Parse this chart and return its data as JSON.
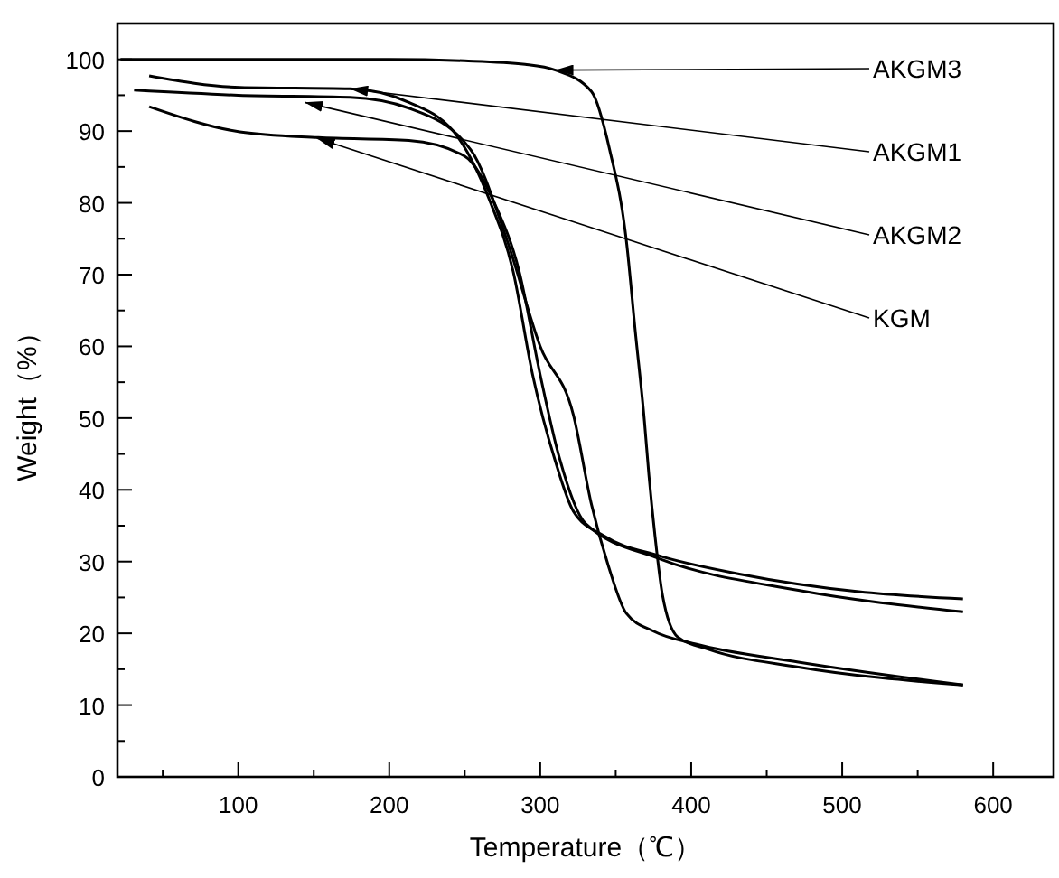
{
  "chart_data": {
    "type": "line",
    "xlabel": "Temperature（℃）",
    "ylabel": "Weight（%）",
    "xlim": [
      20,
      640
    ],
    "ylim": [
      0,
      105
    ],
    "xticks": [
      {
        "value": 50,
        "label": null
      },
      100,
      {
        "value": 150,
        "label": null
      },
      200,
      {
        "value": 250,
        "label": null
      },
      300,
      {
        "value": 350,
        "label": null
      },
      400,
      {
        "value": 450,
        "label": null
      },
      500,
      {
        "value": 550,
        "label": null
      },
      600
    ],
    "yticks": [
      0,
      {
        "value": 5,
        "label": null
      },
      10,
      {
        "value": 15,
        "label": null
      },
      20,
      {
        "value": 25,
        "label": null
      },
      30,
      {
        "value": 35,
        "label": null
      },
      40,
      {
        "value": 45,
        "label": null
      },
      50,
      {
        "value": 55,
        "label": null
      },
      60,
      {
        "value": 65,
        "label": null
      },
      70,
      {
        "value": 75,
        "label": null
      },
      80,
      {
        "value": 85,
        "label": null
      },
      90,
      {
        "value": 95,
        "label": null
      },
      100
    ],
    "grid": false,
    "marker": "none",
    "line_style": "solid",
    "series": [
      {
        "color": "#000000",
        "x": [
          22,
          100,
          200,
          250,
          290,
          310,
          334,
          346,
          357,
          363,
          369,
          372,
          376,
          381,
          391,
          411,
          471,
          580
        ],
        "values": [
          100,
          100,
          100,
          99.8,
          99.3,
          98.5,
          95.5,
          87.4,
          74.8,
          62,
          49.6,
          42,
          33.6,
          25.3,
          19.5,
          17.8,
          15.3,
          12.8
        ]
      },
      {
        "color": "#000000",
        "x": [
          41,
          101,
          174,
          213,
          246,
          266,
          282,
          295,
          310,
          322,
          342,
          379,
          431,
          511,
          580
        ],
        "values": [
          97.7,
          96.1,
          95.9,
          94,
          89,
          80.6,
          70.5,
          56,
          44,
          37,
          33.6,
          30.8,
          28.3,
          25.8,
          24.8
        ]
      },
      {
        "color": "#000000",
        "x": [
          31,
          100,
          174,
          213,
          254,
          278,
          300,
          322,
          334,
          345,
          357,
          375,
          403,
          471,
          580
        ],
        "values": [
          95.7,
          95,
          94.7,
          93.2,
          87.4,
          74.8,
          60,
          50.4,
          37.9,
          29.5,
          22.8,
          20.3,
          18.5,
          16,
          12.8
        ]
      },
      {
        "color": "#000000",
        "x": [
          41,
          101,
          153,
          213,
          250,
          270,
          286,
          300,
          312,
          330,
          379,
          471,
          580
        ],
        "values": [
          93.4,
          89.9,
          89.1,
          88.7,
          86.5,
          79.8,
          70.5,
          56,
          45,
          35.3,
          30.4,
          26,
          23
        ]
      }
    ],
    "annotations": [
      {
        "text": "AKGM3",
        "x": 310,
        "y": 98.5
      },
      {
        "text": "AKGM1",
        "x": 174,
        "y": 95.9
      },
      {
        "text": "AKGM2",
        "x": 144,
        "y": 94
      },
      {
        "text": "KGM",
        "x": 152,
        "y": 89
      }
    ]
  }
}
